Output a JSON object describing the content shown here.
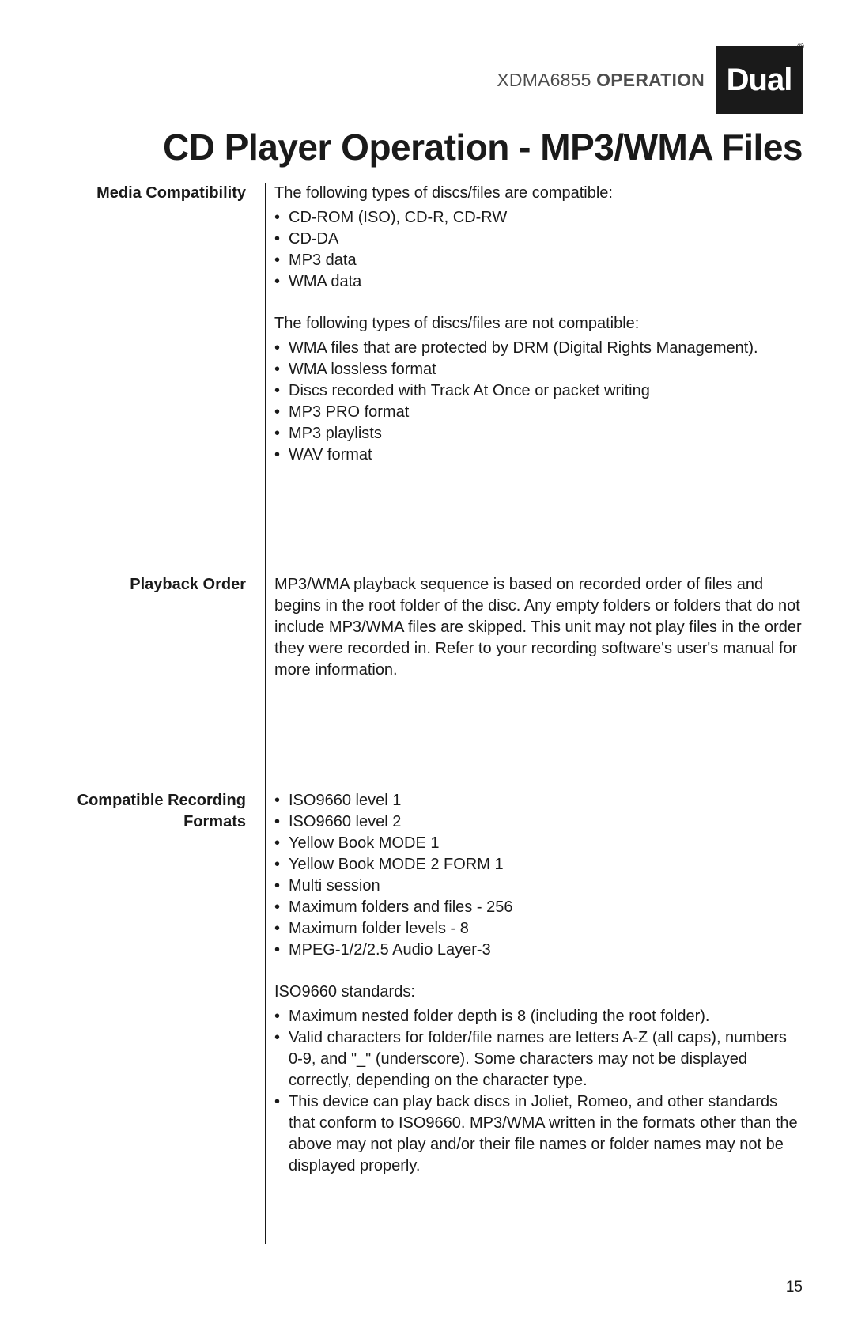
{
  "colors": {
    "text": "#1a1a1a",
    "header_text": "#4d4d4d",
    "background": "#ffffff",
    "logo_bg": "#1a1a1a",
    "logo_fg": "#ffffff",
    "rule": "#1a1a1a"
  },
  "typography": {
    "body_fontsize_pt": 15,
    "title_fontsize_pt": 34,
    "header_fontsize_pt": 17,
    "label_weight": 700
  },
  "header": {
    "model": "XDMA6855",
    "label": "OPERATION",
    "logo_text": "Dual",
    "registered": "®"
  },
  "title": "CD Player Operation - MP3/WMA Files",
  "page_number": "15",
  "sections": [
    {
      "label": "Media Compatibility",
      "blocks": [
        {
          "type": "para",
          "text": "The following types of discs/files are compatible:"
        },
        {
          "type": "list",
          "items": [
            "CD-ROM (ISO), CD-R, CD-RW",
            "CD-DA",
            "MP3 data",
            "WMA data"
          ]
        },
        {
          "type": "spacer"
        },
        {
          "type": "para",
          "text": "The following types of discs/files are not compatible:"
        },
        {
          "type": "list",
          "items": [
            "WMA files that are protected by DRM (Digital Rights Management).",
            "WMA lossless format",
            "Discs recorded with Track At Once or packet writing",
            "MP3 PRO format",
            "MP3 playlists",
            "WAV format"
          ]
        }
      ]
    },
    {
      "label": "Playback Order",
      "blocks": [
        {
          "type": "para",
          "text": "MP3/WMA playback sequence is based on recorded order of files and begins in the root folder of the disc. Any empty folders or folders that do not include MP3/WMA files are skipped. This unit may not play files in the order they were recorded in. Refer to your recording software's user's manual for more information."
        }
      ]
    },
    {
      "label": "Compatible Recording Formats",
      "blocks": [
        {
          "type": "list",
          "items": [
            "ISO9660 level 1",
            "ISO9660 level 2",
            "Yellow Book MODE 1",
            "Yellow Book MODE 2 FORM 1",
            "Multi session",
            "Maximum folders and files - 256",
            "Maximum folder levels - 8",
            "MPEG-1/2/2.5 Audio Layer-3"
          ]
        },
        {
          "type": "spacer"
        },
        {
          "type": "para",
          "text": "ISO9660 standards:"
        },
        {
          "type": "list",
          "items": [
            "Maximum nested folder depth is 8 (including the root folder).",
            "Valid characters for folder/file names are letters A-Z (all caps), numbers 0-9, and \"_\" (underscore). Some characters may not be displayed correctly, depending on the character type.",
            "This device can play back discs in Joliet, Romeo, and other standards that conform to ISO9660. MP3/WMA written in the formats other than the above may not play and/or their file names or folder names may not be displayed properly."
          ]
        }
      ]
    }
  ]
}
